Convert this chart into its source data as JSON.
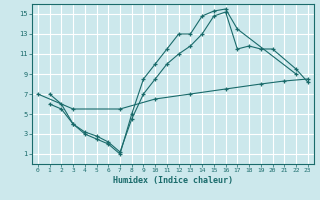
{
  "xlabel": "Humidex (Indice chaleur)",
  "bg_color": "#cce8ec",
  "line_color": "#1a6b6b",
  "grid_color": "#ffffff",
  "xlim": [
    -0.5,
    23.5
  ],
  "ylim": [
    0,
    16
  ],
  "xticks": [
    0,
    1,
    2,
    3,
    4,
    5,
    6,
    7,
    8,
    9,
    10,
    11,
    12,
    13,
    14,
    15,
    16,
    17,
    18,
    19,
    20,
    21,
    22,
    23
  ],
  "yticks": [
    1,
    3,
    5,
    7,
    9,
    11,
    13,
    15
  ],
  "line1_x": [
    1,
    2,
    3,
    4,
    5,
    6,
    7,
    8,
    9,
    10,
    11,
    12,
    13,
    14,
    15,
    16,
    17,
    22
  ],
  "line1_y": [
    7,
    6,
    4,
    3,
    2.5,
    2,
    1,
    5,
    8.5,
    10,
    11.5,
    13,
    13,
    14.8,
    15.3,
    15.5,
    13.5,
    9
  ],
  "line2_x": [
    1,
    2,
    3,
    4,
    5,
    6,
    7,
    8,
    9,
    10,
    11,
    12,
    13,
    14,
    15,
    16,
    17,
    18,
    19,
    20,
    22,
    23
  ],
  "line2_y": [
    6,
    5.5,
    4,
    3.2,
    2.8,
    2.2,
    1.2,
    4.5,
    7,
    8.5,
    10,
    11,
    11.8,
    13,
    14.8,
    15.2,
    11.5,
    11.8,
    11.5,
    11.5,
    9.5,
    8.2
  ],
  "line3_x": [
    0,
    3,
    7,
    10,
    13,
    16,
    19,
    21,
    23
  ],
  "line3_y": [
    7,
    5.5,
    5.5,
    6.5,
    7,
    7.5,
    8,
    8.3,
    8.5
  ]
}
